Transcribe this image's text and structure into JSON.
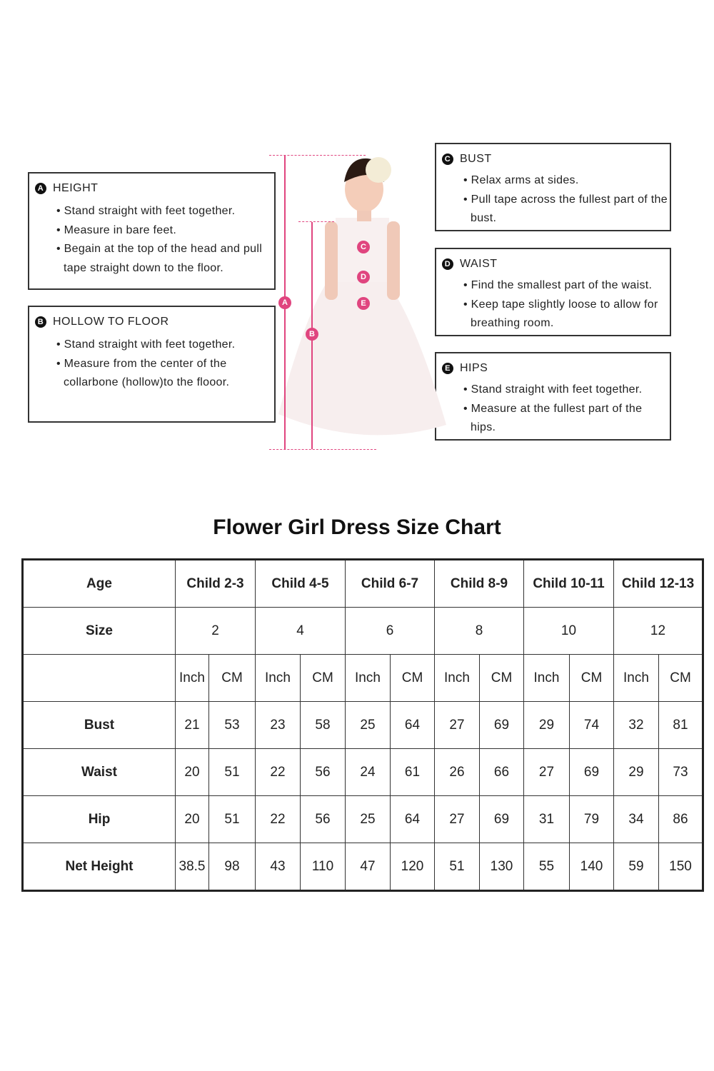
{
  "instructions": [
    {
      "letter": "A",
      "title": "HEIGHT",
      "bullets": [
        "Stand straight with feet together.",
        "Measure in bare feet.",
        "Begain at the top of the head and pull tape straight down to the floor."
      ]
    },
    {
      "letter": "B",
      "title": "HOLLOW TO FLOOR",
      "bullets": [
        "Stand straight with feet together.",
        "Measure from the center of the collarbone (hollow)to the flooor."
      ]
    },
    {
      "letter": "C",
      "title": "BUST",
      "bullets": [
        "Relax arms at sides.",
        "Pull tape across the fullest part of the bust."
      ]
    },
    {
      "letter": "D",
      "title": "WAIST",
      "bullets": [
        "Find the smallest part of the waist.",
        "Keep tape slightly loose to allow for breathing room."
      ]
    },
    {
      "letter": "E",
      "title": "HIPS",
      "bullets": [
        "Stand straight with feet together.",
        "Measure at the fullest part of the hips."
      ]
    }
  ],
  "accent_color": "#e0457f",
  "chart_data": {
    "type": "table",
    "title": "Flower Girl Dress Size Chart",
    "age_label": "Age",
    "size_label": "Size",
    "ages": [
      "Child 2-3",
      "Child 4-5",
      "Child 6-7",
      "Child 8-9",
      "Child 10-11",
      "Child 12-13"
    ],
    "sizes": [
      "2",
      "4",
      "6",
      "8",
      "10",
      "12"
    ],
    "units": [
      "Inch",
      "CM"
    ],
    "rows": [
      {
        "label": "Bust",
        "values": [
          "21",
          "53",
          "23",
          "58",
          "25",
          "64",
          "27",
          "69",
          "29",
          "74",
          "32",
          "81"
        ]
      },
      {
        "label": "Waist",
        "values": [
          "20",
          "51",
          "22",
          "56",
          "24",
          "61",
          "26",
          "66",
          "27",
          "69",
          "29",
          "73"
        ]
      },
      {
        "label": "Hip",
        "values": [
          "20",
          "51",
          "22",
          "56",
          "25",
          "64",
          "27",
          "69",
          "31",
          "79",
          "34",
          "86"
        ]
      },
      {
        "label": "Net Height",
        "values": [
          "38.5",
          "98",
          "43",
          "110",
          "47",
          "120",
          "51",
          "130",
          "55",
          "140",
          "59",
          "150"
        ]
      }
    ]
  }
}
